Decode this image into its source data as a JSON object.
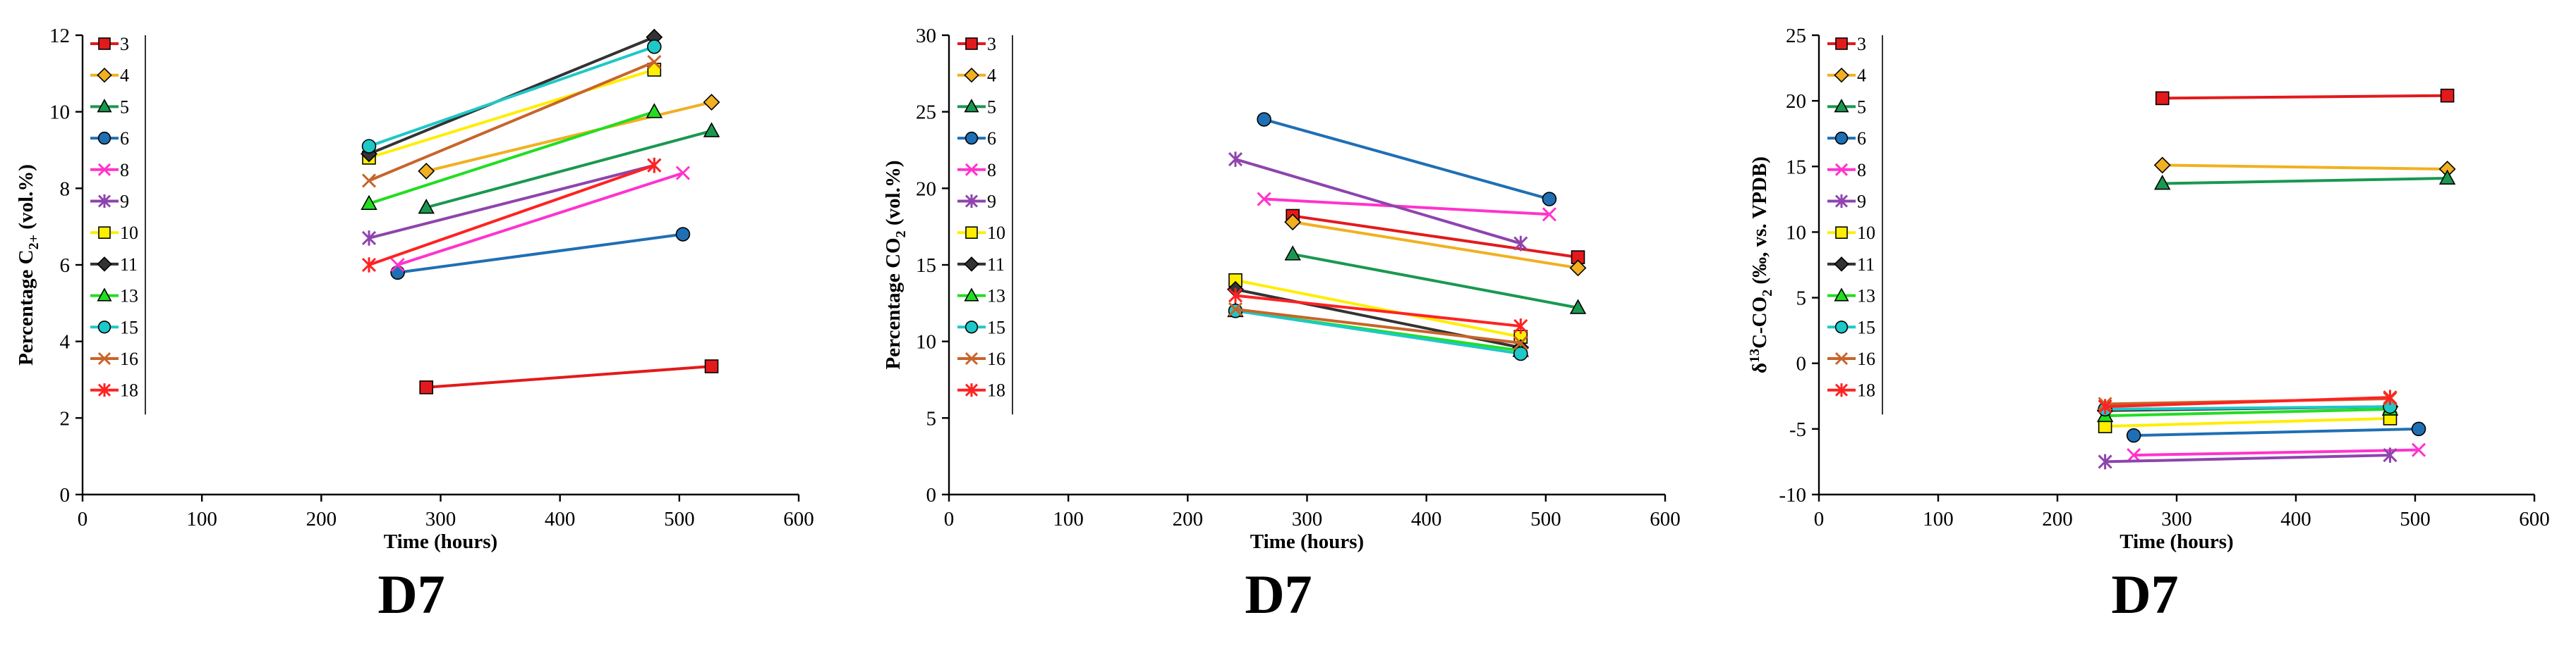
{
  "legend_items": [
    {
      "label": "3",
      "color": "#e31a1c",
      "marker": "square"
    },
    {
      "label": "4",
      "color": "#f0b020",
      "marker": "diamond"
    },
    {
      "label": "5",
      "color": "#1a9850",
      "marker": "triangle"
    },
    {
      "label": "6",
      "color": "#1f6fb4",
      "marker": "circle"
    },
    {
      "label": "8",
      "color": "#ff33cc",
      "marker": "x"
    },
    {
      "label": "9",
      "color": "#8e44ad",
      "marker": "star"
    },
    {
      "label": "10",
      "color": "#ffee00",
      "marker": "square"
    },
    {
      "label": "11",
      "color": "#333333",
      "marker": "diamond"
    },
    {
      "label": "13",
      "color": "#22dd22",
      "marker": "triangle"
    },
    {
      "label": "15",
      "color": "#1ec8c8",
      "marker": "circle"
    },
    {
      "label": "16",
      "color": "#c8642a",
      "marker": "x"
    },
    {
      "label": "18",
      "color": "#ff2222",
      "marker": "star"
    }
  ],
  "chart_data": [
    {
      "type": "line",
      "panel_label": "D7",
      "title": "",
      "xlabel": "Time (hours)",
      "ylabel_main": "Percentage C",
      "ylabel_sub": "2+",
      "ylabel_tail": " (vol.%)",
      "xlim": [
        0,
        600
      ],
      "ylim": [
        0,
        12
      ],
      "xticks": [
        0,
        100,
        200,
        300,
        400,
        500,
        600
      ],
      "yticks": [
        0,
        2,
        4,
        6,
        8,
        10,
        12
      ],
      "series": [
        {
          "name": "3",
          "x": [
            288,
            527
          ],
          "y": [
            2.8,
            3.35
          ]
        },
        {
          "name": "4",
          "x": [
            288,
            527
          ],
          "y": [
            8.45,
            10.25
          ]
        },
        {
          "name": "5",
          "x": [
            288,
            527
          ],
          "y": [
            7.5,
            9.5
          ]
        },
        {
          "name": "6",
          "x": [
            264,
            503
          ],
          "y": [
            5.8,
            6.8
          ]
        },
        {
          "name": "8",
          "x": [
            264,
            503
          ],
          "y": [
            6.0,
            8.4
          ]
        },
        {
          "name": "9",
          "x": [
            240,
            479
          ],
          "y": [
            6.7,
            8.6
          ]
        },
        {
          "name": "10",
          "x": [
            240,
            479
          ],
          "y": [
            8.8,
            11.1
          ]
        },
        {
          "name": "11",
          "x": [
            240,
            479
          ],
          "y": [
            8.9,
            11.95
          ]
        },
        {
          "name": "13",
          "x": [
            240,
            479
          ],
          "y": [
            7.6,
            10.0
          ]
        },
        {
          "name": "15",
          "x": [
            240,
            479
          ],
          "y": [
            9.1,
            11.7
          ]
        },
        {
          "name": "16",
          "x": [
            240,
            479
          ],
          "y": [
            8.2,
            11.3
          ]
        },
        {
          "name": "18",
          "x": [
            240,
            479
          ],
          "y": [
            6.0,
            8.6
          ]
        }
      ]
    },
    {
      "type": "line",
      "panel_label": "D7",
      "title": "",
      "xlabel": "Time (hours)",
      "ylabel_main": "Percentage CO",
      "ylabel_sub": "2",
      "ylabel_tail": " (vol.%)",
      "xlim": [
        0,
        600
      ],
      "ylim": [
        0,
        30
      ],
      "xticks": [
        0,
        100,
        200,
        300,
        400,
        500,
        600
      ],
      "yticks": [
        0,
        5,
        10,
        15,
        20,
        25,
        30
      ],
      "series": [
        {
          "name": "3",
          "x": [
            288,
            527
          ],
          "y": [
            18.2,
            15.5
          ]
        },
        {
          "name": "4",
          "x": [
            288,
            527
          ],
          "y": [
            17.8,
            14.8
          ]
        },
        {
          "name": "5",
          "x": [
            288,
            527
          ],
          "y": [
            15.7,
            12.2
          ]
        },
        {
          "name": "6",
          "x": [
            264,
            503
          ],
          "y": [
            24.5,
            19.3
          ]
        },
        {
          "name": "8",
          "x": [
            264,
            503
          ],
          "y": [
            19.3,
            18.3
          ]
        },
        {
          "name": "9",
          "x": [
            240,
            479
          ],
          "y": [
            21.9,
            16.4
          ]
        },
        {
          "name": "10",
          "x": [
            240,
            479
          ],
          "y": [
            14.0,
            10.3
          ]
        },
        {
          "name": "11",
          "x": [
            240,
            479
          ],
          "y": [
            13.4,
            9.6
          ]
        },
        {
          "name": "13",
          "x": [
            240,
            479
          ],
          "y": [
            12.0,
            9.4
          ]
        },
        {
          "name": "15",
          "x": [
            240,
            479
          ],
          "y": [
            12.0,
            9.2
          ]
        },
        {
          "name": "16",
          "x": [
            240,
            479
          ],
          "y": [
            12.1,
            9.9
          ]
        },
        {
          "name": "18",
          "x": [
            240,
            479
          ],
          "y": [
            13.0,
            11.0
          ]
        }
      ]
    },
    {
      "type": "line",
      "panel_label": "D7",
      "title": "",
      "xlabel": "Time (hours)",
      "ylabel_main": "δ",
      "ylabel_sup": "13",
      "ylabel_mid": "C-CO",
      "ylabel_sub": "2",
      "ylabel_tail": "  (‰, vs. VPDB)",
      "xlim": [
        0,
        600
      ],
      "ylim": [
        -10,
        25
      ],
      "xticks": [
        0,
        100,
        200,
        300,
        400,
        500,
        600
      ],
      "yticks": [
        -10,
        -5,
        0,
        5,
        10,
        15,
        20,
        25
      ],
      "series": [
        {
          "name": "3",
          "x": [
            288,
            527
          ],
          "y": [
            20.2,
            20.4
          ]
        },
        {
          "name": "4",
          "x": [
            288,
            527
          ],
          "y": [
            15.1,
            14.8
          ]
        },
        {
          "name": "5",
          "x": [
            288,
            527
          ],
          "y": [
            13.7,
            14.1
          ]
        },
        {
          "name": "6",
          "x": [
            264,
            503
          ],
          "y": [
            -5.5,
            -5.0
          ]
        },
        {
          "name": "8",
          "x": [
            264,
            503
          ],
          "y": [
            -7.0,
            -6.6
          ]
        },
        {
          "name": "9",
          "x": [
            240,
            479
          ],
          "y": [
            -7.5,
            -7.0
          ]
        },
        {
          "name": "10",
          "x": [
            240,
            479
          ],
          "y": [
            -4.8,
            -4.2
          ]
        },
        {
          "name": "11",
          "x": [
            240,
            479
          ],
          "y": [
            -3.6,
            -3.3
          ]
        },
        {
          "name": "13",
          "x": [
            240,
            479
          ],
          "y": [
            -4.0,
            -3.5
          ]
        },
        {
          "name": "15",
          "x": [
            240,
            479
          ],
          "y": [
            -3.5,
            -3.3
          ]
        },
        {
          "name": "16",
          "x": [
            240,
            479
          ],
          "y": [
            -3.1,
            -2.7
          ]
        },
        {
          "name": "18",
          "x": [
            240,
            479
          ],
          "y": [
            -3.3,
            -2.6
          ]
        }
      ]
    }
  ]
}
